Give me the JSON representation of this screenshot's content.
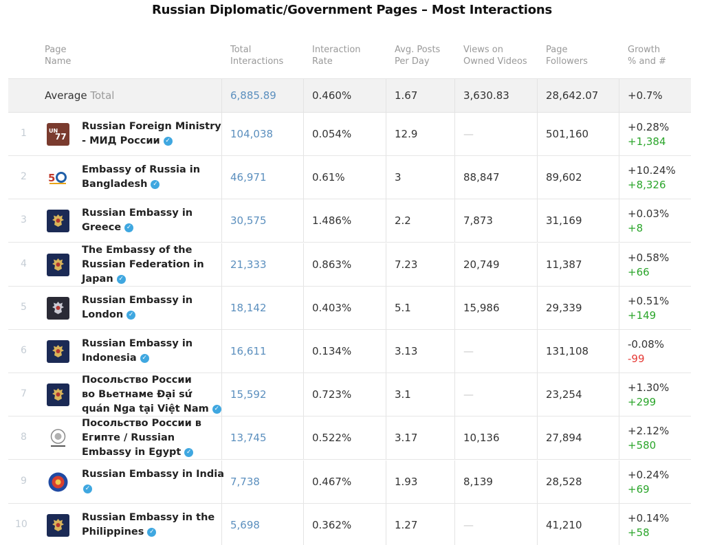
{
  "title": "Russian Diplomatic/Government Pages – Most Interactions",
  "headers": {
    "name": [
      "Page",
      "Name"
    ],
    "total": [
      "Total",
      "Interactions"
    ],
    "rate": [
      "Interaction",
      "Rate"
    ],
    "posts": [
      "Avg. Posts",
      "Per Day"
    ],
    "views": [
      "Views on",
      "Owned Videos"
    ],
    "followers": [
      "Page",
      "Followers"
    ],
    "growth": [
      "Growth",
      "% and #"
    ]
  },
  "average": {
    "label": "Average",
    "sublabel": "Total",
    "total": "6,885.89",
    "rate": "0.460%",
    "posts": "1.67",
    "views": "3,630.83",
    "followers": "28,642.07",
    "growth": "+0.7%"
  },
  "rows": [
    {
      "rank": "1",
      "name_lines": [
        "Russian Foreign Ministry",
        "- МИД России"
      ],
      "logo": "un77-logo",
      "total": "104,038",
      "rate": "0.054%",
      "posts": "12.9",
      "views": "—",
      "followers": "501,160",
      "growth_pct": "+0.28%",
      "growth_num": "+1,384",
      "growth_sign": "pos"
    },
    {
      "rank": "2",
      "name_lines": [
        "Embassy of Russia in",
        "Bangladesh"
      ],
      "logo": "fifty-years-logo",
      "total": "46,971",
      "rate": "0.61%",
      "posts": "3",
      "views": "88,847",
      "followers": "89,602",
      "growth_pct": "+10.24%",
      "growth_num": "+8,326",
      "growth_sign": "pos"
    },
    {
      "rank": "3",
      "name_lines": [
        "Russian Embassy in",
        "Greece"
      ],
      "logo": "eagle-emblem",
      "total": "30,575",
      "rate": "1.486%",
      "posts": "2.2",
      "views": "7,873",
      "followers": "31,169",
      "growth_pct": "+0.03%",
      "growth_num": "+8",
      "growth_sign": "pos"
    },
    {
      "rank": "4",
      "name_lines": [
        "The Embassy of the",
        "Russian Federation in",
        "Japan"
      ],
      "logo": "eagle-emblem",
      "total": "21,333",
      "rate": "0.863%",
      "posts": "7.23",
      "views": "20,749",
      "followers": "11,387",
      "growth_pct": "+0.58%",
      "growth_num": "+66",
      "growth_sign": "pos"
    },
    {
      "rank": "5",
      "name_lines": [
        "Russian Embassy in",
        "London"
      ],
      "logo": "eagle-emblem-dark",
      "total": "18,142",
      "rate": "0.403%",
      "posts": "5.1",
      "views": "15,986",
      "followers": "29,339",
      "growth_pct": "+0.51%",
      "growth_num": "+149",
      "growth_sign": "pos"
    },
    {
      "rank": "6",
      "name_lines": [
        "Russian Embassy in",
        "Indonesia"
      ],
      "logo": "eagle-emblem",
      "total": "16,611",
      "rate": "0.134%",
      "posts": "3.13",
      "views": "—",
      "followers": "131,108",
      "growth_pct": "-0.08%",
      "growth_num": "-99",
      "growth_sign": "neg"
    },
    {
      "rank": "7",
      "name_lines": [
        "Посольство России",
        "во Вьетнаме Đại sứ",
        "quán Nga tại Việt Nam"
      ],
      "logo": "eagle-emblem",
      "total": "15,592",
      "rate": "0.723%",
      "posts": "3.1",
      "views": "—",
      "followers": "23,254",
      "growth_pct": "+1.30%",
      "growth_num": "+299",
      "growth_sign": "pos"
    },
    {
      "rank": "8",
      "name_lines": [
        "Посольство России в",
        "Египте / Russian",
        "Embassy in Egypt"
      ],
      "logo": "seal-logo",
      "total": "13,745",
      "rate": "0.522%",
      "posts": "3.17",
      "views": "10,136",
      "followers": "27,894",
      "growth_pct": "+2.12%",
      "growth_num": "+580",
      "growth_sign": "pos"
    },
    {
      "rank": "9",
      "name_lines": [
        "Russian Embassy in India",
        ""
      ],
      "logo": "round-emblem",
      "total": "7,738",
      "rate": "0.467%",
      "posts": "1.93",
      "views": "8,139",
      "followers": "28,528",
      "growth_pct": "+0.24%",
      "growth_num": "+69",
      "growth_sign": "pos"
    },
    {
      "rank": "10",
      "name_lines": [
        "Russian Embassy in the",
        "Philippines"
      ],
      "logo": "eagle-emblem",
      "total": "5,698",
      "rate": "0.362%",
      "posts": "1.27",
      "views": "—",
      "followers": "41,210",
      "growth_pct": "+0.14%",
      "growth_num": "+58",
      "growth_sign": "pos"
    }
  ],
  "colors": {
    "link_blue": "#5b8fbe",
    "positive": "#2aa52a",
    "negative": "#e53935",
    "verified": "#3fa7e0",
    "emblem_bg": "#1b2a55",
    "emblem_gold": "#d8b45a"
  }
}
